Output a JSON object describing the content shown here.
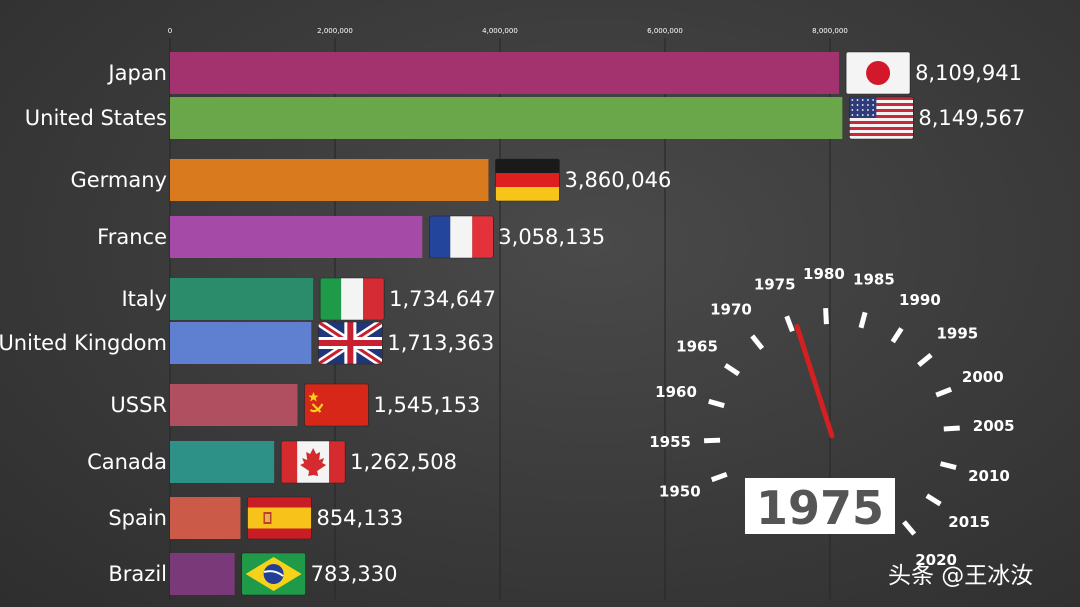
{
  "chart_data": {
    "type": "bar",
    "orientation": "horizontal",
    "categories": [
      "Japan",
      "United States",
      "Germany",
      "France",
      "Italy",
      "United Kingdom",
      "USSR",
      "Canada",
      "Spain",
      "Brazil"
    ],
    "values": [
      8109941,
      8149567,
      3860046,
      3058135,
      1734647,
      1713363,
      1545153,
      1262508,
      854133,
      783330
    ],
    "value_labels": [
      "8,109,941",
      "8,149,567",
      "3,860,046",
      "3,058,135",
      "1,734,647",
      "1,713,363",
      "1,545,153",
      "1,262,508",
      "854,133",
      "783,330"
    ],
    "colors": [
      "#a3336f",
      "#6aa64a",
      "#d97a1f",
      "#a54aa6",
      "#2a8c6a",
      "#5f7fd1",
      "#b04f5f",
      "#2e9187",
      "#cc5a48",
      "#7a3a7a"
    ],
    "flags": [
      "japan-flag",
      "usa-flag",
      "germany-flag",
      "france-flag",
      "italy-flag",
      "uk-flag",
      "ussr-flag",
      "canada-flag",
      "spain-flag",
      "brazil-flag"
    ],
    "x_ticks": [
      0,
      2000000,
      4000000,
      6000000,
      8000000
    ],
    "x_tick_labels": [
      "0",
      "2,000,000",
      "4,000,000",
      "6,000,000",
      "8,000,000"
    ],
    "xlim": [
      0,
      8000000
    ],
    "grid": true,
    "title": "",
    "xlabel": "",
    "ylabel": ""
  },
  "year_dial": {
    "years": [
      "1950",
      "1955",
      "1960",
      "1965",
      "1970",
      "1975",
      "1980",
      "1985",
      "1990",
      "1995",
      "2000",
      "2005",
      "2010",
      "2015",
      "2020"
    ],
    "current_year": "1975",
    "needle_color": "#d42020"
  },
  "watermark": "头条 @王冰汝"
}
